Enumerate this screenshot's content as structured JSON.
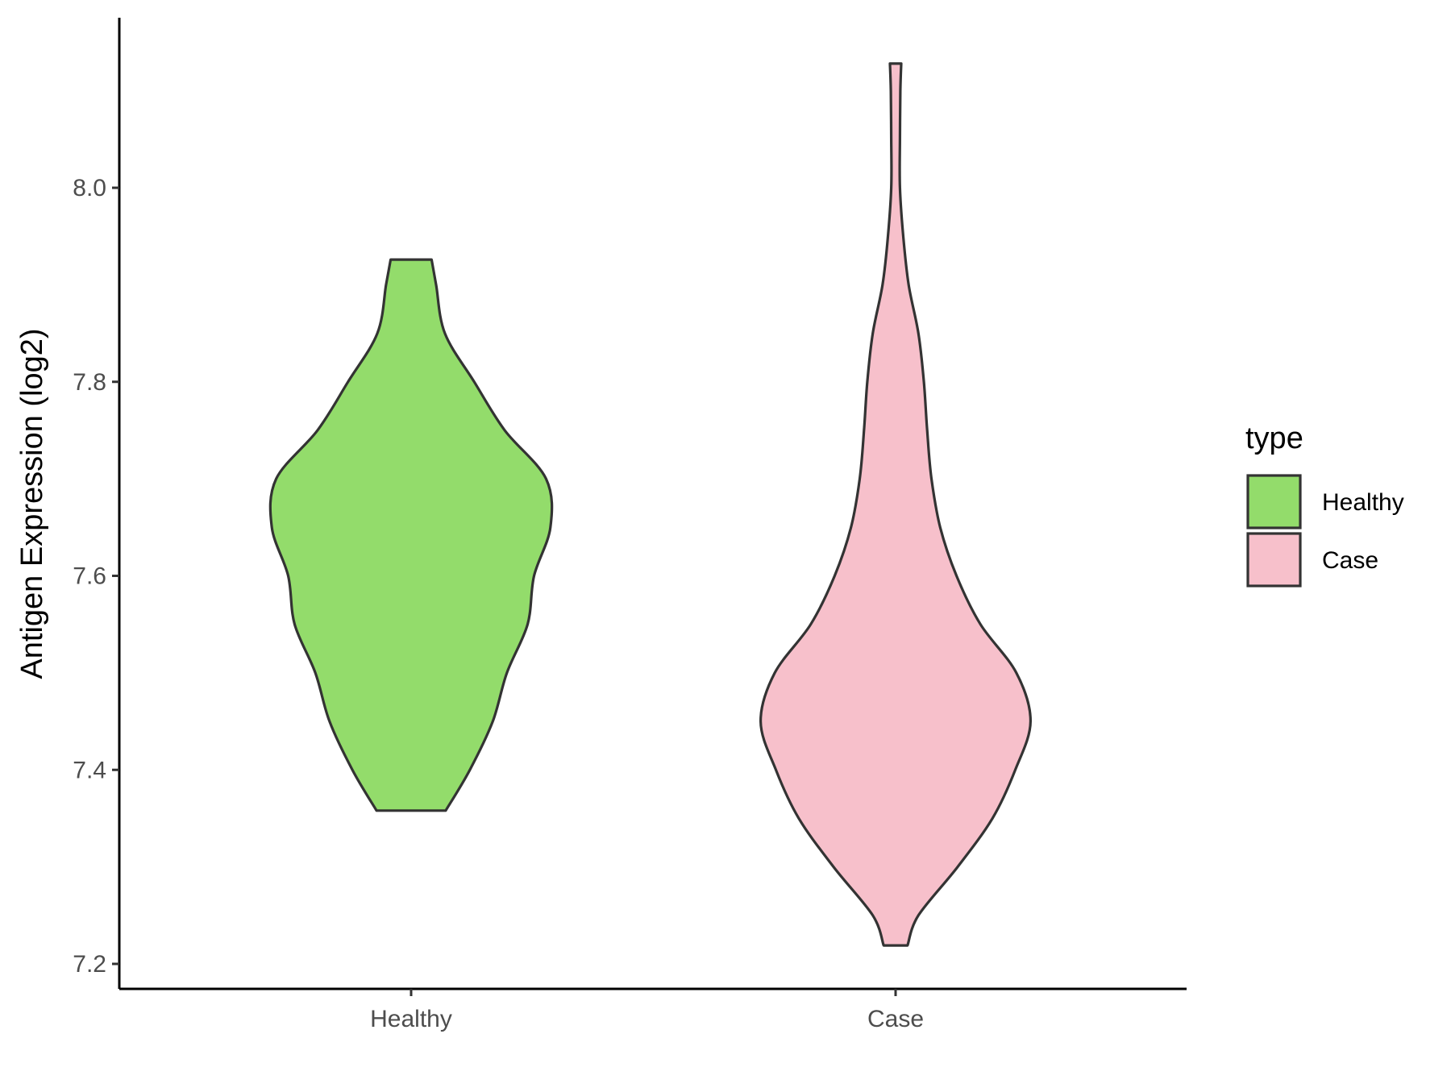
{
  "chart_data": {
    "type": "violin",
    "xlabel": "",
    "ylabel": "Antigen Expression (log2)",
    "categories": [
      "Healthy",
      "Case"
    ],
    "ylim": [
      7.17,
      8.17
    ],
    "yticks": [
      7.2,
      7.4,
      7.6,
      7.8,
      8.0
    ],
    "ytick_labels": [
      "7.2",
      "7.4",
      "7.6",
      "7.8",
      "8.0"
    ],
    "grid": false,
    "legend": {
      "title": "type",
      "position": "right",
      "entries": [
        {
          "label": "Healthy",
          "color": "#93dc6b"
        },
        {
          "label": "Case",
          "color": "#f7c0cb"
        }
      ]
    },
    "series": [
      {
        "category": "Healthy",
        "color": "#93dc6b",
        "min": 7.358,
        "max": 7.926,
        "density_profile": [
          [
            7.358,
            0.159
          ],
          [
            7.4,
            0.27
          ],
          [
            7.45,
            0.375
          ],
          [
            7.5,
            0.44
          ],
          [
            7.55,
            0.535
          ],
          [
            7.6,
            0.565
          ],
          [
            7.65,
            0.64
          ],
          [
            7.7,
            0.62
          ],
          [
            7.75,
            0.43
          ],
          [
            7.8,
            0.29
          ],
          [
            7.85,
            0.155
          ],
          [
            7.9,
            0.115
          ],
          [
            7.926,
            0.094
          ]
        ]
      },
      {
        "category": "Case",
        "color": "#f7c0cb",
        "min": 7.219,
        "max": 8.128,
        "density_profile": [
          [
            7.219,
            0.055
          ],
          [
            7.25,
            0.105
          ],
          [
            7.3,
            0.285
          ],
          [
            7.35,
            0.445
          ],
          [
            7.4,
            0.55
          ],
          [
            7.45,
            0.62
          ],
          [
            7.5,
            0.555
          ],
          [
            7.55,
            0.39
          ],
          [
            7.6,
            0.28
          ],
          [
            7.65,
            0.205
          ],
          [
            7.7,
            0.165
          ],
          [
            7.75,
            0.145
          ],
          [
            7.8,
            0.13
          ],
          [
            7.85,
            0.105
          ],
          [
            7.9,
            0.06
          ],
          [
            7.95,
            0.035
          ],
          [
            8.0,
            0.02
          ],
          [
            8.05,
            0.02
          ],
          [
            8.1,
            0.022
          ],
          [
            8.128,
            0.026
          ]
        ]
      }
    ]
  }
}
